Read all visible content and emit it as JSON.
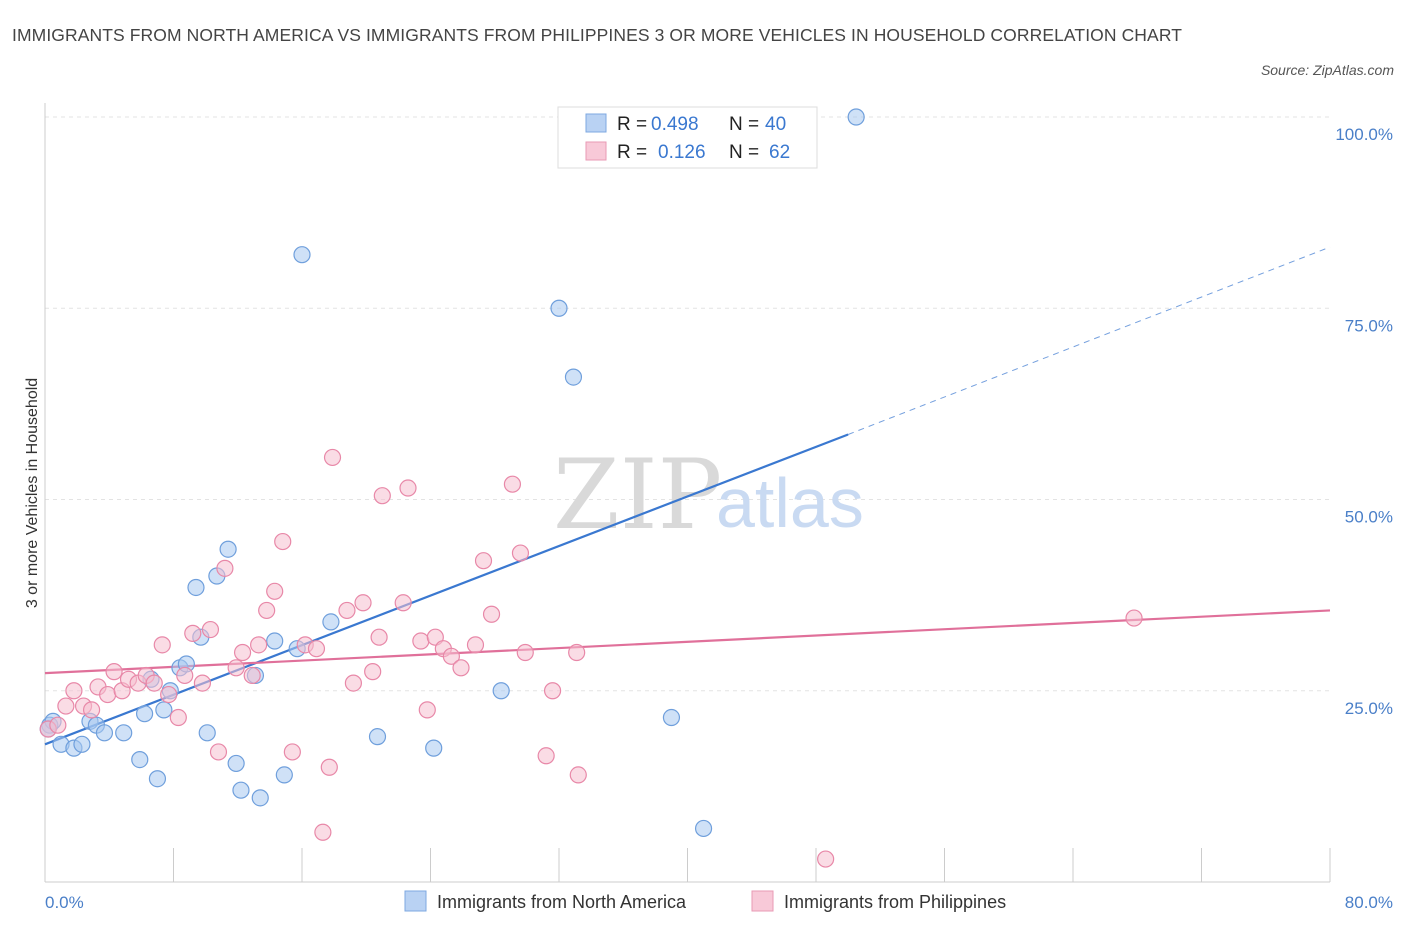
{
  "title": "IMMIGRANTS FROM NORTH AMERICA VS IMMIGRANTS FROM PHILIPPINES 3 OR MORE VEHICLES IN HOUSEHOLD CORRELATION CHART",
  "source": "Source: ZipAtlas.com",
  "watermark": {
    "zip": "ZIP",
    "atlas": "atlas"
  },
  "legend_box": {
    "rows": [
      {
        "r_label": "R =",
        "r_value": "0.498",
        "n_label": "N =",
        "n_value": "40"
      },
      {
        "r_label": "R =",
        "r_value": "0.126",
        "n_label": "N =",
        "n_value": "62"
      }
    ]
  },
  "chart_data": {
    "type": "scatter",
    "title": "IMMIGRANTS FROM NORTH AMERICA VS IMMIGRANTS FROM PHILIPPINES 3 OR MORE VEHICLES IN HOUSEHOLD CORRELATION CHART",
    "xlabel": "",
    "ylabel": "3 or more Vehicles in Household",
    "xlim": [
      0,
      80
    ],
    "ylim": [
      0,
      100
    ],
    "x_tick_labels": [
      "0.0%",
      "80.0%"
    ],
    "y_ticks": [
      25,
      50,
      75,
      100
    ],
    "y_tick_labels": [
      "25.0%",
      "50.0%",
      "75.0%",
      "100.0%"
    ],
    "grid": true,
    "legend_position": "bottom",
    "series": [
      {
        "name": "Immigrants from North America",
        "color": "#a8c8f0",
        "stroke": "#6f9fdc",
        "line_color": "#3a78d0",
        "r": 0.498,
        "n": 40,
        "trend": {
          "x0": 0,
          "y0": 18,
          "x1": 50,
          "y1": 58.5,
          "dash_to_x": 80,
          "dash_to_y": 83
        },
        "points": [
          [
            0.3,
            20.5
          ],
          [
            0.5,
            21
          ],
          [
            1,
            18
          ],
          [
            1.8,
            17.5
          ],
          [
            2.3,
            18
          ],
          [
            2.8,
            21
          ],
          [
            3.2,
            20.5
          ],
          [
            3.7,
            19.5
          ],
          [
            4.9,
            19.5
          ],
          [
            5.9,
            16
          ],
          [
            6.6,
            26.5
          ],
          [
            6.2,
            22
          ],
          [
            7,
            13.5
          ],
          [
            7.4,
            22.5
          ],
          [
            7.8,
            25
          ],
          [
            8.4,
            28
          ],
          [
            8.8,
            28.5
          ],
          [
            9.4,
            38.5
          ],
          [
            9.7,
            32
          ],
          [
            10.1,
            19.5
          ],
          [
            10.7,
            40
          ],
          [
            11.4,
            43.5
          ],
          [
            11.9,
            15.5
          ],
          [
            12.2,
            12
          ],
          [
            13.1,
            27
          ],
          [
            13.4,
            11
          ],
          [
            14.3,
            31.5
          ],
          [
            14.9,
            14
          ],
          [
            15.7,
            30.5
          ],
          [
            16,
            82
          ],
          [
            17.8,
            34
          ],
          [
            20.7,
            19
          ],
          [
            24.2,
            17.5
          ],
          [
            28.4,
            25
          ],
          [
            32,
            75
          ],
          [
            32.9,
            66
          ],
          [
            39,
            21.5
          ],
          [
            41,
            7
          ],
          [
            50.5,
            100
          ],
          [
            0.2,
            20
          ]
        ]
      },
      {
        "name": "Immigrants from Philippines",
        "color": "#f6bfd0",
        "stroke": "#e888a8",
        "line_color": "#e0709a",
        "r": 0.126,
        "n": 62,
        "trend": {
          "x0": 0,
          "y0": 27.3,
          "x1": 80,
          "y1": 35.5
        },
        "points": [
          [
            0.2,
            20
          ],
          [
            0.8,
            20.5
          ],
          [
            1.3,
            23
          ],
          [
            1.8,
            25
          ],
          [
            2.4,
            23
          ],
          [
            2.9,
            22.5
          ],
          [
            3.3,
            25.5
          ],
          [
            3.9,
            24.5
          ],
          [
            4.3,
            27.5
          ],
          [
            4.8,
            25
          ],
          [
            5.2,
            26.5
          ],
          [
            5.8,
            26
          ],
          [
            6.3,
            27
          ],
          [
            6.8,
            26
          ],
          [
            7.3,
            31
          ],
          [
            7.7,
            24.5
          ],
          [
            8.3,
            21.5
          ],
          [
            8.7,
            27
          ],
          [
            9.2,
            32.5
          ],
          [
            9.8,
            26
          ],
          [
            10.3,
            33
          ],
          [
            10.8,
            17
          ],
          [
            11.2,
            41
          ],
          [
            11.9,
            28
          ],
          [
            12.3,
            30
          ],
          [
            12.9,
            27
          ],
          [
            13.3,
            31
          ],
          [
            13.8,
            35.5
          ],
          [
            14.3,
            38
          ],
          [
            14.8,
            44.5
          ],
          [
            15.4,
            17
          ],
          [
            16.2,
            31
          ],
          [
            16.9,
            30.5
          ],
          [
            17.3,
            6.5
          ],
          [
            17.7,
            15
          ],
          [
            17.9,
            55.5
          ],
          [
            18.8,
            35.5
          ],
          [
            19.2,
            26
          ],
          [
            19.8,
            36.5
          ],
          [
            20.4,
            27.5
          ],
          [
            20.8,
            32
          ],
          [
            21,
            50.5
          ],
          [
            22.3,
            36.5
          ],
          [
            22.6,
            51.5
          ],
          [
            23.4,
            31.5
          ],
          [
            23.8,
            22.5
          ],
          [
            24.3,
            32
          ],
          [
            24.8,
            30.5
          ],
          [
            25.3,
            29.5
          ],
          [
            25.9,
            28
          ],
          [
            26.8,
            31
          ],
          [
            27.3,
            42
          ],
          [
            27.8,
            35
          ],
          [
            29.1,
            52
          ],
          [
            29.6,
            43
          ],
          [
            29.9,
            30
          ],
          [
            31.2,
            16.5
          ],
          [
            31.6,
            25
          ],
          [
            33.1,
            30
          ],
          [
            33.2,
            14
          ],
          [
            48.6,
            3
          ],
          [
            67.8,
            34.5
          ]
        ]
      }
    ]
  }
}
